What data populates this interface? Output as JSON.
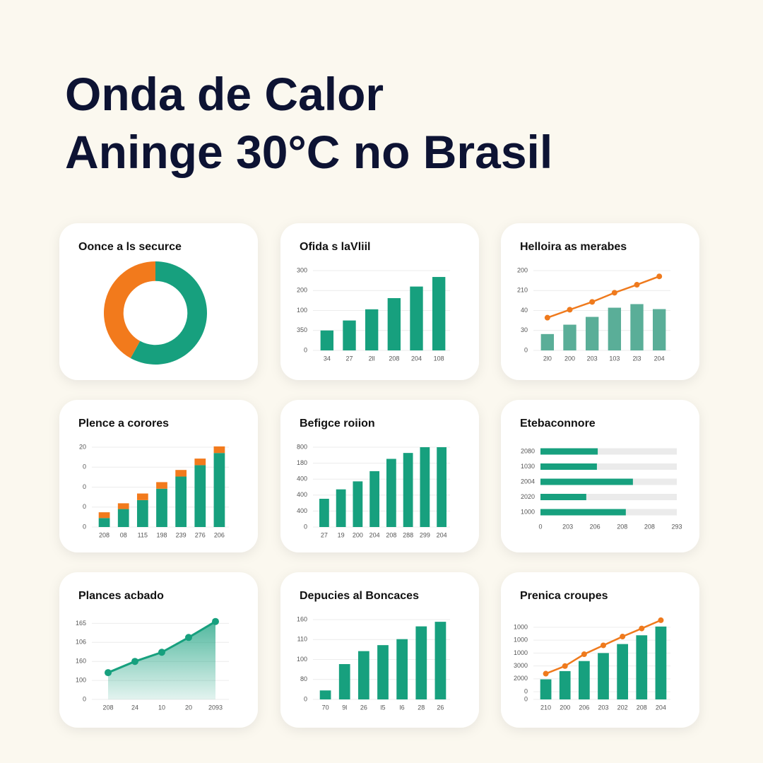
{
  "header": {
    "lines": [
      "Onda de Calor",
      "Aninge 30°C no Brasil"
    ]
  },
  "chart_data": [
    {
      "type": "pie",
      "title": "Oonce a ls securce",
      "values": [
        58,
        42
      ],
      "colors": [
        "#17a07e",
        "#f27a1c"
      ],
      "hole": 0.62
    },
    {
      "type": "bar",
      "title": "Ofida s laVliil",
      "categories": [
        "34",
        "27",
        "2ll",
        "208",
        "204",
        "108"
      ],
      "series": [
        {
          "color": "#17a07e",
          "values": [
            1.0,
            1.5,
            2.06,
            2.62,
            3.2,
            3.68
          ]
        }
      ],
      "ylim": [
        0,
        4
      ],
      "yticks": [
        {
          "value": 4,
          "label": "300"
        },
        {
          "value": 3,
          "label": "200"
        },
        {
          "value": 2,
          "label": "100"
        },
        {
          "value": 1,
          "label": "350"
        },
        0
      ],
      "grid": true
    },
    {
      "type": "combo",
      "title": "Helloira as merabes",
      "categories": [
        "2l0",
        "200",
        "203",
        "103",
        "2l3",
        "204"
      ],
      "series": [
        {
          "color": "#5aae98",
          "values": [
            0.82,
            1.29,
            1.68,
            2.14,
            2.32,
            2.07
          ]
        },
        {
          "color": "#ef7a1d",
          "values": [
            1.64,
            2.04,
            2.43,
            2.89,
            3.29,
            3.71
          ]
        }
      ],
      "ylim": [
        0,
        4
      ],
      "yticks": [
        {
          "value": 4,
          "label": "200"
        },
        {
          "value": 3,
          "label": "210"
        },
        {
          "value": 2,
          "label": "40"
        },
        {
          "value": 1,
          "label": "30"
        },
        0
      ],
      "grid": true
    },
    {
      "type": "stacked",
      "title": "Plence a corores",
      "categories": [
        "208",
        "08",
        "115",
        "198",
        "239",
        "276",
        "206"
      ],
      "series": [
        {
          "color": "#17a07e",
          "values": [
            0.45,
            0.9,
            1.35,
            1.92,
            2.53,
            3.1,
            3.71
          ]
        },
        {
          "color": "#f27a1c",
          "values": [
            0.29,
            0.29,
            0.33,
            0.33,
            0.33,
            0.33,
            0.33
          ]
        }
      ],
      "ylim": [
        0,
        4
      ],
      "yticks": [
        {
          "value": 4,
          "label": "20"
        },
        {
          "value": 3,
          "label": "0"
        },
        {
          "value": 2,
          "label": "0"
        },
        {
          "value": 1,
          "label": "0"
        },
        0
      ],
      "grid": true
    },
    {
      "type": "bar",
      "title": "Befigce roiion",
      "categories": [
        "27",
        "19",
        "200",
        "204",
        "208",
        "288",
        "299",
        "204"
      ],
      "series": [
        {
          "color": "#17a07e",
          "values": [
            1.77,
            2.36,
            2.86,
            3.5,
            4.27,
            4.64,
            5.0,
            5.0
          ]
        }
      ],
      "ylim": [
        0,
        5
      ],
      "yticks": [
        {
          "value": 5,
          "label": "800"
        },
        {
          "value": 4,
          "label": "180"
        },
        {
          "value": 3,
          "label": "400"
        },
        {
          "value": 2,
          "label": "400"
        },
        {
          "value": 1,
          "label": "400"
        },
        0
      ],
      "grid": true
    },
    {
      "type": "hbar",
      "title": "Etebaconnore",
      "categories": [
        "2080",
        "1030",
        "2004",
        "2020",
        "1000"
      ],
      "values": [
        2.1,
        2.07,
        3.39,
        1.68,
        3.13
      ],
      "color": "#17a07e",
      "track": "#ebebeb",
      "xlim": [
        0,
        5
      ],
      "xticks": [
        0,
        {
          "value": 1,
          "label": "203"
        },
        {
          "value": 2,
          "label": "206"
        },
        {
          "value": 3,
          "label": "208"
        },
        {
          "value": 4,
          "label": "208"
        },
        {
          "value": 5,
          "label": "293"
        }
      ]
    },
    {
      "type": "area",
      "title": "Plances acbado",
      "categories": [
        "208",
        "24",
        "10",
        "20",
        "2093"
      ],
      "values": [
        1.41,
        2.0,
        2.48,
        3.26,
        4.1
      ],
      "color": "#17a07e",
      "ylim": [
        0,
        4.2
      ],
      "yticks": [
        {
          "value": 4,
          "label": "165"
        },
        {
          "value": 3,
          "label": "106"
        },
        {
          "value": 2,
          "label": "160"
        },
        {
          "value": 1,
          "label": "100"
        },
        0
      ],
      "grid": true
    },
    {
      "type": "bar",
      "title": "Depucies al Boncaces",
      "categories": [
        "70",
        "9l",
        "26",
        "l5",
        "l6",
        "28",
        "26"
      ],
      "series": [
        {
          "color": "#17a07e",
          "values": [
            0.45,
            1.77,
            2.42,
            2.72,
            3.02,
            3.66,
            3.89
          ]
        }
      ],
      "ylim": [
        0,
        4
      ],
      "yticks": [
        {
          "value": 4,
          "label": "160"
        },
        {
          "value": 3,
          "label": "110"
        },
        {
          "value": 2,
          "label": "100"
        },
        {
          "value": 1,
          "label": "80"
        },
        0
      ],
      "grid": true
    },
    {
      "type": "combo",
      "title": "Prenica croupes",
      "categories": [
        "210",
        "200",
        "206",
        "203",
        "202",
        "208",
        "204"
      ],
      "series": [
        {
          "color": "#17a07e",
          "values": [
            1.56,
            2.2,
            2.98,
            3.6,
            4.3,
            4.98,
            5.66
          ]
        },
        {
          "color": "#ef7a1d",
          "values": [
            2.0,
            2.59,
            3.51,
            4.2,
            4.88,
            5.51,
            6.15
          ]
        }
      ],
      "ylim": [
        0,
        6.2
      ],
      "yticks": [
        {
          "value": 5.6,
          "label": "1000"
        },
        {
          "value": 4.6,
          "label": "1000"
        },
        {
          "value": 3.6,
          "label": "1000"
        },
        {
          "value": 2.6,
          "label": "3000"
        },
        {
          "value": 1.6,
          "label": "2000"
        },
        {
          "value": 0.6,
          "label": "0"
        },
        0
      ],
      "grid": true
    }
  ]
}
